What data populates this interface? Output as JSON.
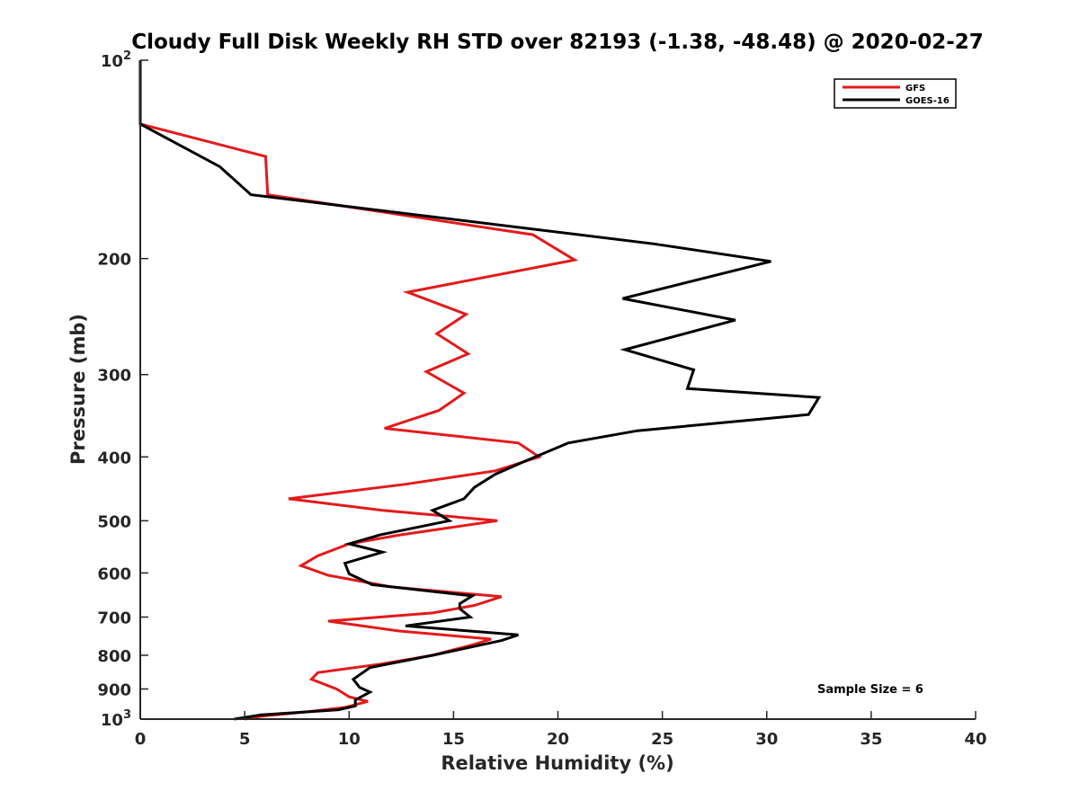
{
  "chart_data": {
    "type": "line",
    "title": "Cloudy Full Disk Weekly RH STD over 82193 (-1.38, -48.48) @ 2020-02-27",
    "xlabel": "Relative Humidity (%)",
    "ylabel": "Pressure (mb)",
    "xlim": [
      0,
      40
    ],
    "ylim": [
      100,
      1000
    ],
    "yscale": "log",
    "y_reversed": true,
    "grid": false,
    "legend_position": "top-right",
    "x_ticks": [
      "0",
      "5",
      "10",
      "15",
      "20",
      "25",
      "30",
      "35",
      "40"
    ],
    "y_ticks": [
      {
        "value": 100,
        "base": "10",
        "exp": "2"
      },
      {
        "value": 200,
        "label": "200"
      },
      {
        "value": 300,
        "label": "300"
      },
      {
        "value": 400,
        "label": "400"
      },
      {
        "value": 500,
        "label": "500"
      },
      {
        "value": 600,
        "label": "600"
      },
      {
        "value": 700,
        "label": "700"
      },
      {
        "value": 800,
        "label": "800"
      },
      {
        "value": 900,
        "label": "900"
      },
      {
        "value": 1000,
        "base": "10",
        "exp": "3"
      }
    ],
    "series": [
      {
        "name": "GFS",
        "color": "#e31a1c",
        "points": [
          [
            0,
            100
          ],
          [
            0,
            125
          ],
          [
            6.0,
            140
          ],
          [
            6.1,
            160
          ],
          [
            18.8,
            184
          ],
          [
            20.8,
            201
          ],
          [
            12.8,
            225
          ],
          [
            15.6,
            243
          ],
          [
            14.2,
            260
          ],
          [
            15.7,
            279
          ],
          [
            13.7,
            297
          ],
          [
            15.5,
            320
          ],
          [
            14.3,
            340
          ],
          [
            11.7,
            362
          ],
          [
            18.1,
            381
          ],
          [
            19.1,
            400
          ],
          [
            17.0,
            420
          ],
          [
            12.7,
            440
          ],
          [
            7.1,
            463
          ],
          [
            11.6,
            482
          ],
          [
            17.1,
            500
          ],
          [
            12.5,
            525
          ],
          [
            10.0,
            542
          ],
          [
            8.5,
            565
          ],
          [
            7.7,
            585
          ],
          [
            9.0,
            605
          ],
          [
            12.0,
            630
          ],
          [
            17.3,
            652
          ],
          [
            16.0,
            672
          ],
          [
            14.0,
            690
          ],
          [
            9.0,
            710
          ],
          [
            12.4,
            735
          ],
          [
            16.8,
            756
          ],
          [
            16.0,
            770
          ],
          [
            14.0,
            800
          ],
          [
            11.5,
            825
          ],
          [
            8.5,
            850
          ],
          [
            8.2,
            870
          ],
          [
            9.4,
            900
          ],
          [
            10.0,
            925
          ],
          [
            10.9,
            940
          ],
          [
            9.8,
            960
          ],
          [
            8.0,
            975
          ],
          [
            5.8,
            990
          ],
          [
            5.0,
            1000
          ]
        ]
      },
      {
        "name": "GOES-16",
        "color": "#000000",
        "points": [
          [
            0,
            100
          ],
          [
            0,
            125
          ],
          [
            3.8,
            145
          ],
          [
            5.3,
            160
          ],
          [
            24.6,
            190
          ],
          [
            30.2,
            202
          ],
          [
            23.1,
            230
          ],
          [
            28.5,
            248
          ],
          [
            23.2,
            275
          ],
          [
            26.5,
            295
          ],
          [
            26.2,
            315
          ],
          [
            32.5,
            325
          ],
          [
            32.0,
            345
          ],
          [
            23.8,
            365
          ],
          [
            20.5,
            381
          ],
          [
            18.5,
            405
          ],
          [
            17.0,
            425
          ],
          [
            16.0,
            445
          ],
          [
            15.5,
            463
          ],
          [
            14.0,
            482
          ],
          [
            14.8,
            500
          ],
          [
            11.5,
            525
          ],
          [
            10.0,
            542
          ],
          [
            11.6,
            558
          ],
          [
            9.8,
            580
          ],
          [
            10.0,
            602
          ],
          [
            11.1,
            625
          ],
          [
            15.9,
            650
          ],
          [
            15.3,
            668
          ],
          [
            15.3,
            680
          ],
          [
            15.8,
            700
          ],
          [
            12.7,
            722
          ],
          [
            18.1,
            745
          ],
          [
            17.3,
            760
          ],
          [
            14.0,
            800
          ],
          [
            11.0,
            835
          ],
          [
            10.2,
            870
          ],
          [
            10.5,
            895
          ],
          [
            11.0,
            910
          ],
          [
            10.3,
            935
          ],
          [
            10.3,
            955
          ],
          [
            9.5,
            968
          ],
          [
            5.8,
            985
          ],
          [
            4.5,
            1000
          ]
        ]
      }
    ],
    "annotations": [
      "Sample Size = 6"
    ]
  }
}
